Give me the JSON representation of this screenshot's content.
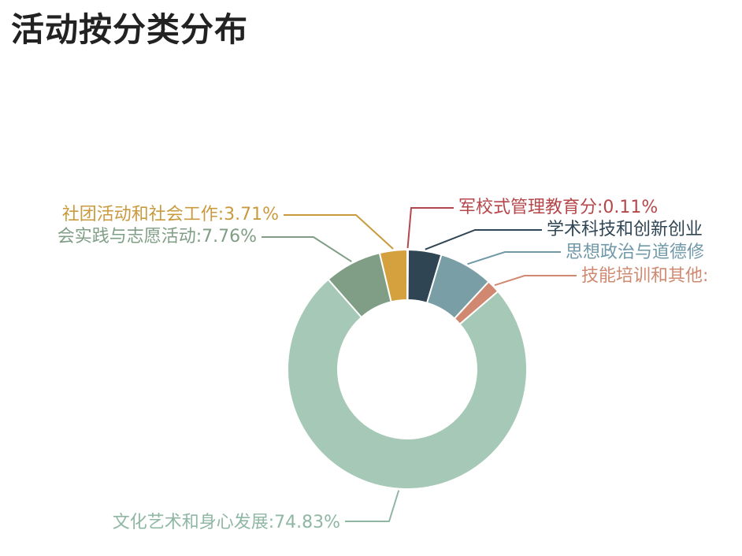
{
  "title": "活动按分类分布",
  "chart_data": {
    "type": "pie",
    "donut": true,
    "title": "活动按分类分布",
    "slices": [
      {
        "label": "军校式管理教育分",
        "value": 0.11,
        "display": "军校式管理教育分:0.11%",
        "color": "#b5474b"
      },
      {
        "label": "学术科技和创新创业",
        "value": 4.5,
        "display": "学术科技和创新创业",
        "color": "#2f4554"
      },
      {
        "label": "思想政治与道德修",
        "value": 7.3,
        "display": "思想政治与道德修",
        "color": "#7a9ea5"
      },
      {
        "label": "技能培训和其他",
        "value": 1.79,
        "display": "技能培训和其他:",
        "color": "#d08970"
      },
      {
        "label": "文化艺术和身心发展",
        "value": 74.83,
        "display": "文化艺术和身心发展:74.83%",
        "color": "#a6c8b6"
      },
      {
        "label": "社会实践与志愿活动",
        "value": 7.76,
        "display": "会实践与志愿活动:7.76%",
        "color": "#7f9e85"
      },
      {
        "label": "社团活动和社会工作",
        "value": 3.71,
        "display": "社团活动和社会工作:3.71%",
        "color": "#d4a13e"
      }
    ],
    "label_colors": {
      "军校式管理教育分": "#b5474b",
      "学术科技和创新创业": "#2f4554",
      "思想政治与道德修": "#6f98a8",
      "技能培训和其他": "#d08970",
      "文化艺术和身心发展": "#8fb7a4",
      "社会实践与志愿活动": "#7f9e85",
      "社团活动和社会工作": "#c99a3e"
    }
  }
}
